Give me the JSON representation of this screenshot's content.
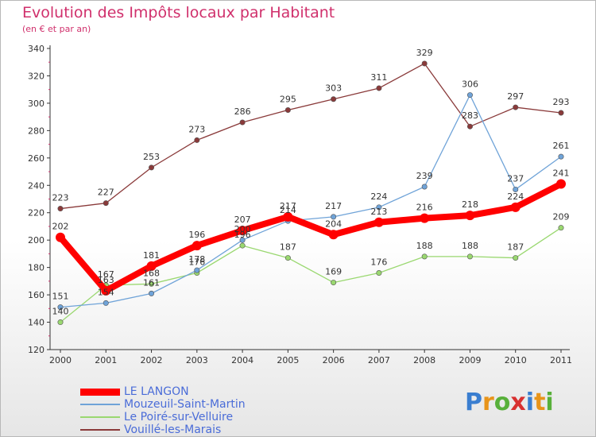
{
  "title": "Evolution des Impôts locaux par Habitant",
  "subtitle": "(en € et par an)",
  "logo_text": "Proxiti",
  "logo_letters": [
    {
      "ch": "P",
      "color": "#3a7ed0"
    },
    {
      "ch": "r",
      "color": "#e8941a"
    },
    {
      "ch": "o",
      "color": "#58b03a"
    },
    {
      "ch": "x",
      "color": "#d83030"
    },
    {
      "ch": "i",
      "color": "#3a7ed0"
    },
    {
      "ch": "t",
      "color": "#e8941a"
    },
    {
      "ch": "i",
      "color": "#58b03a"
    }
  ],
  "chart_data": {
    "type": "line",
    "title": "Evolution des Impôts locaux par Habitant",
    "subtitle": "(en € et par an)",
    "xlabel": "",
    "ylabel": "",
    "x": [
      2000,
      2001,
      2002,
      2003,
      2004,
      2005,
      2006,
      2007,
      2008,
      2009,
      2010,
      2011
    ],
    "ylim": [
      120,
      340
    ],
    "yticks": [
      120,
      140,
      160,
      180,
      200,
      220,
      240,
      260,
      280,
      300,
      320,
      340
    ],
    "grid": false,
    "legend_position": "bottom-left",
    "series": [
      {
        "name": "LE LANGON",
        "color": "#ff0000",
        "values": [
          202,
          163,
          181,
          196,
          207,
          217,
          204,
          213,
          216,
          218,
          224,
          241
        ]
      },
      {
        "name": "Mouzeuil-Saint-Martin",
        "color": "#6fa3d8",
        "values": [
          151,
          154,
          161,
          178,
          200,
          214,
          217,
          224,
          239,
          306,
          237,
          261
        ]
      },
      {
        "name": "Le Poiré-sur-Velluire",
        "color": "#9ad870",
        "values": [
          140,
          167,
          168,
          176,
          196,
          187,
          169,
          176,
          188,
          188,
          187,
          209
        ]
      },
      {
        "name": "Vouillé-les-Marais",
        "color": "#8a3a3a",
        "values": [
          223,
          227,
          253,
          273,
          286,
          295,
          303,
          311,
          329,
          283,
          297,
          293
        ]
      }
    ]
  }
}
